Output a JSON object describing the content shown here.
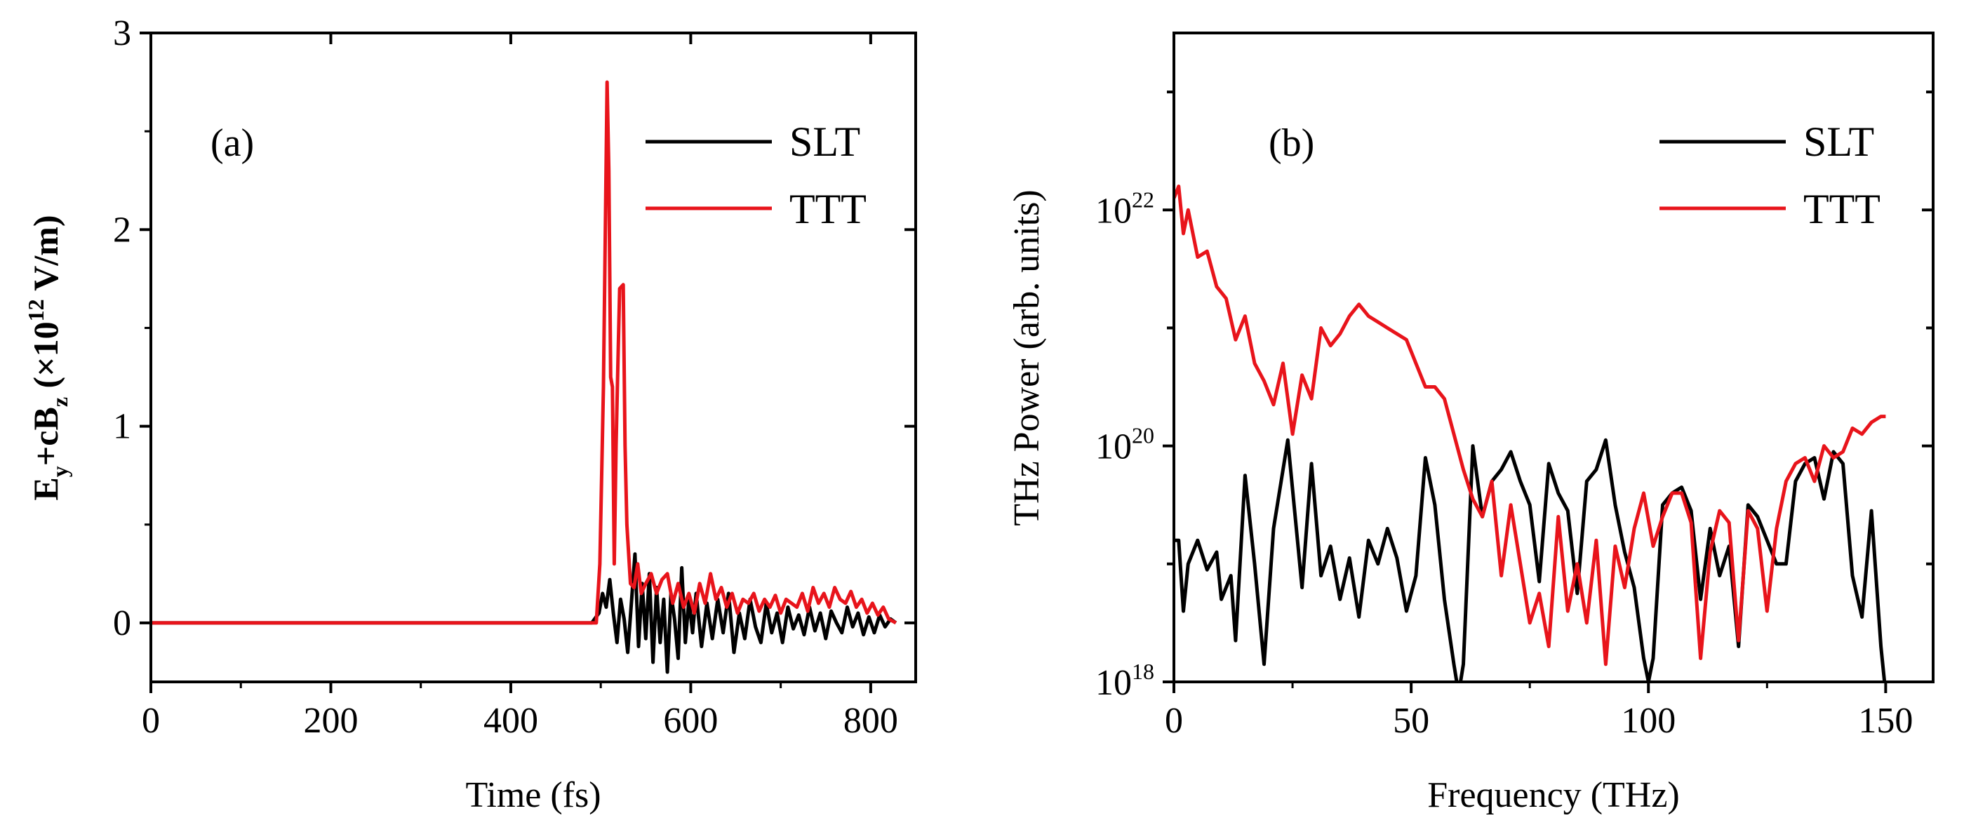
{
  "chart_data": [
    {
      "type": "line",
      "panel_label": "(a)",
      "xlabel": "Time (fs)",
      "ylabel": {
        "base": "E",
        "sub1": "y",
        "mid": "+cB",
        "sub2": "z",
        "unit_pre": " (×10",
        "unit_sup": "12",
        "unit_post": " V/m)"
      },
      "xlim": [
        0,
        850
      ],
      "ylim": [
        -0.3,
        3
      ],
      "xticks": [
        0,
        200,
        400,
        600,
        800
      ],
      "xtick_labels": [
        "0",
        "200",
        "400",
        "600",
        "800"
      ],
      "yticks": [
        0,
        1,
        2,
        3
      ],
      "ytick_labels": [
        "0",
        "1",
        "2",
        "3"
      ],
      "legend": [
        "SLT",
        "TTT"
      ],
      "series": [
        {
          "name": "SLT",
          "color": "#000000",
          "x": [
            0,
            490,
            498,
            502,
            506,
            510,
            514,
            518,
            522,
            526,
            530,
            534,
            538,
            542,
            546,
            550,
            554,
            558,
            562,
            566,
            570,
            574,
            578,
            582,
            586,
            590,
            594,
            598,
            602,
            606,
            612,
            618,
            624,
            630,
            636,
            642,
            648,
            654,
            660,
            666,
            672,
            678,
            684,
            690,
            696,
            702,
            708,
            714,
            720,
            726,
            732,
            738,
            744,
            750,
            756,
            762,
            768,
            774,
            780,
            786,
            792,
            798,
            804,
            810,
            816,
            822,
            828
          ],
          "y": [
            0,
            0,
            0.05,
            0.15,
            0.08,
            0.22,
            0.05,
            -0.1,
            0.12,
            0.02,
            -0.15,
            0.1,
            0.35,
            -0.12,
            0.2,
            -0.08,
            0.25,
            -0.2,
            0.18,
            -0.1,
            0.12,
            -0.25,
            0.15,
            0.02,
            -0.18,
            0.28,
            -0.1,
            0.12,
            -0.05,
            0.15,
            -0.12,
            0.1,
            -0.08,
            0.12,
            -0.05,
            0.15,
            -0.15,
            0.05,
            -0.08,
            0.12,
            -0.02,
            -0.1,
            0.1,
            -0.05,
            0.05,
            -0.1,
            0.08,
            -0.03,
            0.04,
            -0.06,
            0.08,
            -0.04,
            0.05,
            -0.08,
            0.06,
            0.0,
            -0.05,
            0.08,
            -0.02,
            0.05,
            -0.06,
            0.03,
            -0.05,
            0.04,
            -0.02,
            0.02,
            0.0
          ]
        },
        {
          "name": "TTT",
          "color": "#e8141b",
          "x": [
            0,
            495,
            499,
            503,
            507,
            509,
            511,
            513,
            515,
            517,
            519,
            521,
            525,
            527,
            529,
            533,
            537,
            541,
            545,
            550,
            556,
            562,
            568,
            574,
            580,
            586,
            592,
            598,
            604,
            610,
            616,
            622,
            628,
            634,
            640,
            646,
            652,
            658,
            664,
            670,
            676,
            682,
            688,
            694,
            700,
            706,
            712,
            718,
            724,
            730,
            736,
            742,
            748,
            754,
            760,
            766,
            772,
            778,
            784,
            790,
            796,
            802,
            808,
            814,
            820,
            828
          ],
          "y": [
            0,
            0,
            0.3,
            1.2,
            2.75,
            2.3,
            1.25,
            1.2,
            0.3,
            0.9,
            1.3,
            1.7,
            1.72,
            0.9,
            0.5,
            0.2,
            0.18,
            0.3,
            0.15,
            0.2,
            0.25,
            0.15,
            0.22,
            0.25,
            0.1,
            0.2,
            0.08,
            0.15,
            0.05,
            0.2,
            0.1,
            0.25,
            0.12,
            0.18,
            0.08,
            0.15,
            0.05,
            0.12,
            0.1,
            0.15,
            0.06,
            0.12,
            0.08,
            0.14,
            0.05,
            0.12,
            0.1,
            0.08,
            0.15,
            0.06,
            0.18,
            0.1,
            0.15,
            0.08,
            0.18,
            0.12,
            0.1,
            0.16,
            0.08,
            0.12,
            0.05,
            0.1,
            0.04,
            0.08,
            0.02,
            0.0
          ]
        }
      ]
    },
    {
      "type": "line",
      "panel_label": "(b)",
      "xlabel": "Frequency (THz)",
      "ylabel": "THz Power (arb. units)",
      "yscale": "log",
      "xlim": [
        0,
        160
      ],
      "ylim_log10": [
        18,
        23.5
      ],
      "xticks": [
        0,
        50,
        100,
        150
      ],
      "xtick_labels": [
        "0",
        "50",
        "100",
        "150"
      ],
      "yticks_log10": [
        18,
        20,
        22
      ],
      "ytick_labels": [
        {
          "base": "10",
          "exp": "18"
        },
        {
          "base": "10",
          "exp": "20"
        },
        {
          "base": "10",
          "exp": "22"
        }
      ],
      "legend": [
        "SLT",
        "TTT"
      ],
      "series": [
        {
          "name": "SLT",
          "color": "#000000",
          "x": [
            0,
            1,
            2,
            3,
            5,
            7,
            9,
            10,
            12,
            13,
            15,
            17,
            19,
            21,
            24,
            27,
            29,
            31,
            33,
            35,
            37,
            39,
            41,
            43,
            45,
            47,
            49,
            51,
            53,
            55,
            57,
            59,
            60,
            61,
            63,
            65,
            67,
            69,
            71,
            73,
            75,
            77,
            79,
            81,
            83,
            85,
            87,
            89,
            91,
            93,
            95,
            97,
            99,
            100,
            101,
            103,
            105,
            107,
            109,
            111,
            113,
            115,
            117,
            119,
            121,
            123,
            125,
            127,
            129,
            131,
            133,
            135,
            137,
            139,
            141,
            143,
            145,
            147,
            149,
            150
          ],
          "y": [
            19.2,
            19.2,
            18.6,
            19.0,
            19.2,
            18.95,
            19.1,
            18.7,
            18.9,
            18.35,
            19.75,
            19.0,
            18.15,
            19.3,
            20.05,
            18.8,
            19.85,
            18.9,
            19.15,
            18.7,
            19.05,
            18.55,
            19.2,
            19.0,
            19.3,
            19.05,
            18.6,
            18.9,
            19.9,
            19.5,
            18.7,
            18.15,
            17.9,
            18.15,
            20.0,
            19.4,
            19.7,
            19.8,
            19.95,
            19.7,
            19.5,
            18.85,
            19.85,
            19.6,
            19.45,
            18.75,
            19.7,
            19.8,
            20.05,
            19.5,
            19.1,
            18.8,
            18.2,
            18.0,
            18.2,
            19.5,
            19.6,
            19.65,
            19.45,
            18.7,
            19.3,
            18.9,
            19.15,
            18.3,
            19.5,
            19.4,
            19.2,
            19.0,
            19.0,
            19.7,
            19.85,
            19.9,
            19.55,
            19.95,
            19.85,
            18.9,
            18.55,
            19.45,
            18.3,
            17.9
          ]
        },
        {
          "name": "TTT",
          "color": "#e8141b",
          "x": [
            0,
            1,
            2,
            3,
            5,
            7,
            9,
            11,
            13,
            15,
            17,
            19,
            21,
            23,
            25,
            27,
            29,
            31,
            33,
            35,
            37,
            39,
            41,
            43,
            45,
            47,
            49,
            51,
            53,
            55,
            57,
            59,
            61,
            63,
            65,
            67,
            69,
            71,
            73,
            75,
            77,
            79,
            81,
            83,
            85,
            87,
            89,
            91,
            93,
            95,
            97,
            99,
            101,
            103,
            105,
            107,
            109,
            111,
            113,
            115,
            117,
            119,
            121,
            123,
            125,
            127,
            129,
            131,
            133,
            135,
            137,
            139,
            141,
            143,
            145,
            147,
            149,
            150
          ],
          "y": [
            22.1,
            22.2,
            21.8,
            22.0,
            21.6,
            21.65,
            21.35,
            21.25,
            20.9,
            21.1,
            20.7,
            20.55,
            20.35,
            20.7,
            20.1,
            20.6,
            20.4,
            21.0,
            20.85,
            20.95,
            21.1,
            21.2,
            21.1,
            21.05,
            21.0,
            20.95,
            20.9,
            20.7,
            20.5,
            20.5,
            20.4,
            20.1,
            19.8,
            19.55,
            19.4,
            19.7,
            18.9,
            19.5,
            19.0,
            18.5,
            18.75,
            18.3,
            19.4,
            18.6,
            19.0,
            18.5,
            19.2,
            18.15,
            19.15,
            18.8,
            19.3,
            19.6,
            19.15,
            19.4,
            19.6,
            19.6,
            19.35,
            18.2,
            19.1,
            19.45,
            19.35,
            18.35,
            19.45,
            19.3,
            18.6,
            19.3,
            19.7,
            19.85,
            19.9,
            19.7,
            20.0,
            19.9,
            19.95,
            20.15,
            20.1,
            20.2,
            20.25,
            20.25
          ]
        }
      ]
    }
  ]
}
